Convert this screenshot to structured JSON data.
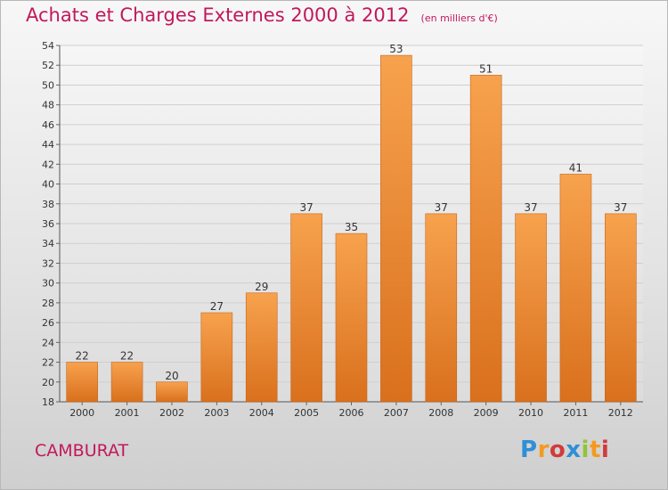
{
  "header": {
    "title": "Achats et Charges Externes 2000 à 2012",
    "unit": "(en milliers d'€)"
  },
  "footer": {
    "place": "CAMBURAT",
    "brand": "Proxiti"
  },
  "colors": {
    "bar_light": "#f7a24e",
    "bar_dark": "#d9701d",
    "title": "#c2185b"
  },
  "chart_data": {
    "type": "bar",
    "title": "Achats et Charges Externes 2000 à 2012",
    "unit": "(en milliers d'€)",
    "categories": [
      "2000",
      "2001",
      "2002",
      "2003",
      "2004",
      "2005",
      "2006",
      "2007",
      "2008",
      "2009",
      "2010",
      "2011",
      "2012"
    ],
    "values": [
      22,
      22,
      20,
      27,
      29,
      37,
      35,
      53,
      37,
      51,
      37,
      41,
      37
    ],
    "ylim": [
      18,
      54
    ],
    "yticks": [
      18,
      20,
      22,
      24,
      26,
      28,
      30,
      32,
      34,
      36,
      38,
      40,
      42,
      44,
      46,
      48,
      50,
      52,
      54
    ],
    "grid": true,
    "legend": "none"
  }
}
